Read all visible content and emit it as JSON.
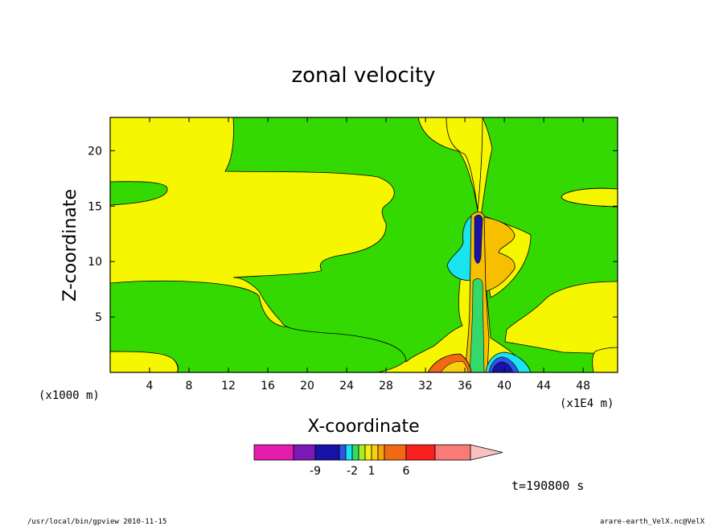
{
  "chart_data": {
    "type": "contour",
    "title": "zonal velocity",
    "xlabel": "X-coordinate",
    "ylabel": "Z-coordinate",
    "x_unit_left": "(x1000 m)",
    "x_unit_right": "(x1E4 m)",
    "xlim": [
      0,
      51.5
    ],
    "ylim": [
      0,
      23
    ],
    "x_ticks": [
      4,
      8,
      12,
      16,
      20,
      24,
      28,
      32,
      36,
      40,
      44,
      48
    ],
    "y_ticks": [
      5,
      10,
      15,
      20
    ],
    "colorbar": {
      "colors": [
        "#e41dae",
        "#7a19b5",
        "#1713a8",
        "#2c56e8",
        "#1ae4ef",
        "#33d96b",
        "#a7ef20",
        "#f6ec14",
        "#f8cf0f",
        "#f6a20e",
        "#f26913",
        "#fb2020",
        "#fa7a78",
        "#fbc0c0"
      ],
      "labels": [
        {
          "text": "-9",
          "after_segment": 1
        },
        {
          "text": "-2",
          "after_segment": 4
        },
        {
          "text": "1",
          "after_segment": 7
        },
        {
          "text": "6",
          "after_segment": 10
        }
      ]
    },
    "time_label": "t=190800 s"
  },
  "footer": {
    "left": "/usr/local/bin/gpview   2010-11-15",
    "right": "arare-earth_VelX.nc@VelX"
  }
}
